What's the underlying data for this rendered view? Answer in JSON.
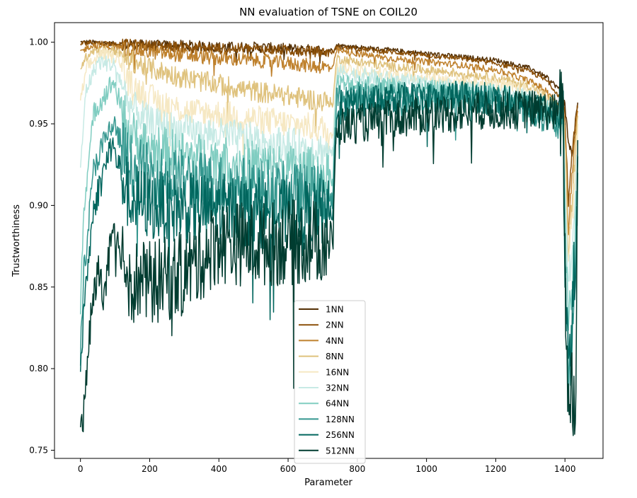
{
  "chart_data": {
    "type": "line",
    "title": "NN evaluation of TSNE on COIL20",
    "xlabel": "Parameter",
    "ylabel": "Trustworthiness",
    "xlim": [
      -75,
      1510
    ],
    "ylim": [
      0.745,
      1.012
    ],
    "xticks": [
      0,
      200,
      400,
      600,
      800,
      1000,
      1200,
      1400
    ],
    "yticks": [
      0.75,
      0.8,
      0.85,
      0.9,
      0.95,
      1.0
    ],
    "ytick_labels": [
      "0.75",
      "0.80",
      "0.85",
      "0.90",
      "0.95",
      "1.00"
    ],
    "grid": false,
    "legend_position": "bottom-center",
    "series": [
      {
        "name": "1NN",
        "color": "#543005",
        "points": [
          [
            0,
            1.0
          ],
          [
            30,
            1.0
          ],
          [
            100,
            0.999
          ],
          [
            200,
            0.998
          ],
          [
            300,
            0.998
          ],
          [
            400,
            0.997
          ],
          [
            500,
            0.997
          ],
          [
            600,
            0.996
          ],
          [
            700,
            0.995
          ],
          [
            730,
            0.995
          ],
          [
            740,
            0.998
          ],
          [
            800,
            0.997
          ],
          [
            900,
            0.995
          ],
          [
            1000,
            0.993
          ],
          [
            1100,
            0.991
          ],
          [
            1200,
            0.989
          ],
          [
            1300,
            0.984
          ],
          [
            1350,
            0.978
          ],
          [
            1380,
            0.972
          ],
          [
            1395,
            0.966
          ],
          [
            1400,
            0.96
          ],
          [
            1410,
            0.94
          ],
          [
            1420,
            0.93
          ],
          [
            1430,
            0.95
          ],
          [
            1437,
            0.963
          ]
        ],
        "noise": 0.0015
      },
      {
        "name": "2NN",
        "color": "#8c510a",
        "points": [
          [
            0,
            0.999
          ],
          [
            30,
            1.0
          ],
          [
            100,
            0.999
          ],
          [
            200,
            0.998
          ],
          [
            300,
            0.997
          ],
          [
            400,
            0.996
          ],
          [
            500,
            0.996
          ],
          [
            600,
            0.995
          ],
          [
            700,
            0.994
          ],
          [
            730,
            0.994
          ],
          [
            740,
            0.997
          ],
          [
            800,
            0.996
          ],
          [
            900,
            0.994
          ],
          [
            1000,
            0.992
          ],
          [
            1100,
            0.99
          ],
          [
            1200,
            0.987
          ],
          [
            1300,
            0.982
          ],
          [
            1350,
            0.976
          ],
          [
            1380,
            0.968
          ],
          [
            1395,
            0.962
          ],
          [
            1400,
            0.955
          ],
          [
            1410,
            0.9
          ],
          [
            1420,
            0.93
          ],
          [
            1430,
            0.95
          ],
          [
            1437,
            0.96
          ]
        ],
        "noise": 0.0015
      },
      {
        "name": "4NN",
        "color": "#bf812d",
        "points": [
          [
            0,
            0.994
          ],
          [
            30,
            0.998
          ],
          [
            100,
            0.997
          ],
          [
            200,
            0.994
          ],
          [
            300,
            0.992
          ],
          [
            400,
            0.99
          ],
          [
            500,
            0.989
          ],
          [
            600,
            0.987
          ],
          [
            700,
            0.985
          ],
          [
            730,
            0.984
          ],
          [
            740,
            0.995
          ],
          [
            800,
            0.993
          ],
          [
            900,
            0.99
          ],
          [
            1000,
            0.988
          ],
          [
            1100,
            0.986
          ],
          [
            1200,
            0.983
          ],
          [
            1300,
            0.976
          ],
          [
            1350,
            0.97
          ],
          [
            1380,
            0.962
          ],
          [
            1395,
            0.958
          ],
          [
            1400,
            0.95
          ],
          [
            1410,
            0.88
          ],
          [
            1420,
            0.92
          ],
          [
            1430,
            0.94
          ],
          [
            1437,
            0.958
          ]
        ],
        "noise": 0.002
      },
      {
        "name": "8NN",
        "color": "#dfc27d",
        "points": [
          [
            0,
            0.985
          ],
          [
            30,
            0.995
          ],
          [
            100,
            0.995
          ],
          [
            130,
            0.99
          ],
          [
            200,
            0.984
          ],
          [
            300,
            0.978
          ],
          [
            400,
            0.974
          ],
          [
            500,
            0.97
          ],
          [
            600,
            0.967
          ],
          [
            700,
            0.964
          ],
          [
            730,
            0.963
          ],
          [
            740,
            0.99
          ],
          [
            800,
            0.988
          ],
          [
            900,
            0.985
          ],
          [
            1000,
            0.983
          ],
          [
            1100,
            0.981
          ],
          [
            1200,
            0.978
          ],
          [
            1300,
            0.973
          ],
          [
            1350,
            0.966
          ],
          [
            1380,
            0.96
          ],
          [
            1395,
            0.958
          ],
          [
            1400,
            0.94
          ],
          [
            1410,
            0.87
          ],
          [
            1420,
            0.9
          ],
          [
            1430,
            0.93
          ],
          [
            1437,
            0.955
          ]
        ],
        "noise": 0.003
      },
      {
        "name": "16NN",
        "color": "#f6e8c3",
        "points": [
          [
            0,
            0.965
          ],
          [
            20,
            0.985
          ],
          [
            60,
            0.993
          ],
          [
            110,
            0.99
          ],
          [
            140,
            0.975
          ],
          [
            200,
            0.966
          ],
          [
            300,
            0.958
          ],
          [
            400,
            0.956
          ],
          [
            500,
            0.953
          ],
          [
            600,
            0.95
          ],
          [
            700,
            0.947
          ],
          [
            730,
            0.944
          ],
          [
            740,
            0.985
          ],
          [
            800,
            0.983
          ],
          [
            900,
            0.98
          ],
          [
            1000,
            0.978
          ],
          [
            1100,
            0.976
          ],
          [
            1200,
            0.974
          ],
          [
            1300,
            0.97
          ],
          [
            1350,
            0.964
          ],
          [
            1380,
            0.958
          ],
          [
            1395,
            0.956
          ],
          [
            1400,
            0.93
          ],
          [
            1410,
            0.86
          ],
          [
            1420,
            0.89
          ],
          [
            1430,
            0.92
          ],
          [
            1437,
            0.95
          ]
        ],
        "noise": 0.004
      },
      {
        "name": "32NN",
        "color": "#c7eae5",
        "points": [
          [
            0,
            0.92
          ],
          [
            15,
            0.97
          ],
          [
            50,
            0.988
          ],
          [
            100,
            0.986
          ],
          [
            140,
            0.962
          ],
          [
            200,
            0.95
          ],
          [
            300,
            0.945
          ],
          [
            400,
            0.943
          ],
          [
            500,
            0.94
          ],
          [
            600,
            0.937
          ],
          [
            700,
            0.934
          ],
          [
            730,
            0.932
          ],
          [
            740,
            0.982
          ],
          [
            800,
            0.98
          ],
          [
            900,
            0.977
          ],
          [
            1000,
            0.974
          ],
          [
            1100,
            0.972
          ],
          [
            1200,
            0.97
          ],
          [
            1300,
            0.966
          ],
          [
            1350,
            0.962
          ],
          [
            1380,
            0.957
          ],
          [
            1395,
            0.955
          ],
          [
            1400,
            0.92
          ],
          [
            1410,
            0.85
          ],
          [
            1420,
            0.87
          ],
          [
            1430,
            0.9
          ],
          [
            1437,
            0.94
          ]
        ],
        "noise": 0.005
      },
      {
        "name": "64NN",
        "color": "#80cdc1",
        "points": [
          [
            0,
            0.84
          ],
          [
            10,
            0.9
          ],
          [
            40,
            0.958
          ],
          [
            95,
            0.976
          ],
          [
            140,
            0.945
          ],
          [
            200,
            0.935
          ],
          [
            300,
            0.93
          ],
          [
            400,
            0.928
          ],
          [
            500,
            0.925
          ],
          [
            600,
            0.922
          ],
          [
            700,
            0.92
          ],
          [
            730,
            0.918
          ],
          [
            740,
            0.974
          ],
          [
            800,
            0.974
          ],
          [
            900,
            0.972
          ],
          [
            1000,
            0.97
          ],
          [
            1100,
            0.969
          ],
          [
            1200,
            0.968
          ],
          [
            1300,
            0.963
          ],
          [
            1350,
            0.958
          ],
          [
            1380,
            0.953
          ],
          [
            1395,
            0.95
          ],
          [
            1400,
            0.9
          ],
          [
            1410,
            0.82
          ],
          [
            1420,
            0.85
          ],
          [
            1430,
            0.88
          ],
          [
            1437,
            0.93
          ]
        ],
        "noise": 0.007
      },
      {
        "name": "128NN",
        "color": "#35978f",
        "points": [
          [
            0,
            0.81
          ],
          [
            10,
            0.86
          ],
          [
            40,
            0.925
          ],
          [
            95,
            0.95
          ],
          [
            140,
            0.925
          ],
          [
            200,
            0.918
          ],
          [
            300,
            0.915
          ],
          [
            400,
            0.912
          ],
          [
            500,
            0.91
          ],
          [
            600,
            0.907
          ],
          [
            700,
            0.905
          ],
          [
            730,
            0.903
          ],
          [
            740,
            0.966
          ],
          [
            800,
            0.967
          ],
          [
            900,
            0.966
          ],
          [
            1000,
            0.966
          ],
          [
            1100,
            0.966
          ],
          [
            1200,
            0.965
          ],
          [
            1300,
            0.958
          ],
          [
            1350,
            0.953
          ],
          [
            1380,
            0.948
          ],
          [
            1395,
            0.945
          ],
          [
            1400,
            0.88
          ],
          [
            1410,
            0.79
          ],
          [
            1420,
            0.82
          ],
          [
            1430,
            0.86
          ],
          [
            1437,
            0.92
          ]
        ],
        "noise": 0.009
      },
      {
        "name": "256NN",
        "color": "#01665e",
        "points": [
          [
            0,
            0.79
          ],
          [
            10,
            0.84
          ],
          [
            40,
            0.9
          ],
          [
            90,
            0.938
          ],
          [
            140,
            0.905
          ],
          [
            200,
            0.9
          ],
          [
            300,
            0.898
          ],
          [
            400,
            0.898
          ],
          [
            500,
            0.896
          ],
          [
            600,
            0.894
          ],
          [
            700,
            0.895
          ],
          [
            730,
            0.893
          ],
          [
            740,
            0.96
          ],
          [
            800,
            0.963
          ],
          [
            900,
            0.965
          ],
          [
            1000,
            0.966
          ],
          [
            1100,
            0.967
          ],
          [
            1200,
            0.965
          ],
          [
            1300,
            0.96
          ],
          [
            1350,
            0.957
          ],
          [
            1380,
            0.955
          ],
          [
            1395,
            0.95
          ],
          [
            1400,
            0.87
          ],
          [
            1410,
            0.8
          ],
          [
            1420,
            0.83
          ],
          [
            1430,
            0.87
          ],
          [
            1437,
            0.93
          ]
        ],
        "noise": 0.01
      },
      {
        "name": "512NN",
        "color": "#003c30",
        "points": [
          [
            0,
            0.756
          ],
          [
            10,
            0.775
          ],
          [
            30,
            0.83
          ],
          [
            50,
            0.86
          ],
          [
            70,
            0.845
          ],
          [
            90,
            0.88
          ],
          [
            120,
            0.872
          ],
          [
            140,
            0.855
          ],
          [
            200,
            0.852
          ],
          [
            300,
            0.858
          ],
          [
            400,
            0.878
          ],
          [
            500,
            0.876
          ],
          [
            600,
            0.877
          ],
          [
            700,
            0.878
          ],
          [
            730,
            0.88
          ],
          [
            740,
            0.948
          ],
          [
            800,
            0.95
          ],
          [
            900,
            0.953
          ],
          [
            1000,
            0.955
          ],
          [
            1100,
            0.957
          ],
          [
            1200,
            0.958
          ],
          [
            1300,
            0.959
          ],
          [
            1350,
            0.958
          ],
          [
            1380,
            0.956
          ],
          [
            1395,
            0.955
          ],
          [
            1400,
            0.86
          ],
          [
            1410,
            0.77
          ],
          [
            1420,
            0.8
          ],
          [
            1430,
            0.76
          ],
          [
            1437,
            0.94
          ]
        ],
        "noise": 0.012
      }
    ]
  }
}
